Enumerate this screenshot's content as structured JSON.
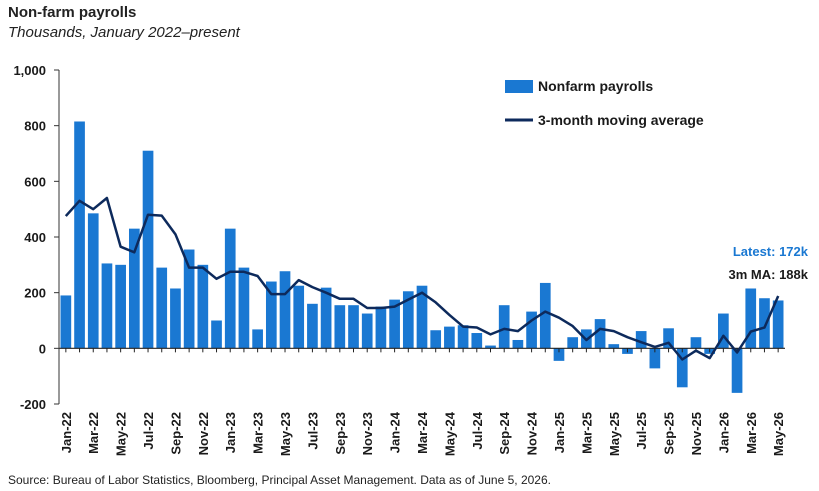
{
  "header": {
    "title": "Non-farm payrolls",
    "subtitle": "Thousands, January 2022–present"
  },
  "footer": {
    "source": "Source: Bureau of Labor Statistics, Bloomberg, Principal Asset Management. Data as of June 5, 2026."
  },
  "annotations": {
    "latest": "Latest: 172k",
    "ma": "3m MA: 188k"
  },
  "colors": {
    "bar": "#1a78d2",
    "line": "#0d2a5c",
    "latest": "#1a78d2",
    "ma": "#1a1a1a"
  },
  "chart_data": {
    "type": "bar",
    "title": "Non-farm payrolls",
    "subtitle": "Thousands, January 2022–present",
    "xlabel": "",
    "ylabel": "",
    "ylim": [
      -200,
      1000
    ],
    "yticks": [
      -200,
      0,
      200,
      400,
      600,
      800,
      1000
    ],
    "ytick_labels": [
      "-200",
      "0",
      "200",
      "400",
      "600",
      "800",
      "1,000"
    ],
    "grid": false,
    "legend": "top-right",
    "categories": [
      "Jan-22",
      "Feb-22",
      "Mar-22",
      "Apr-22",
      "May-22",
      "Jun-22",
      "Jul-22",
      "Aug-22",
      "Sep-22",
      "Oct-22",
      "Nov-22",
      "Dec-22",
      "Jan-23",
      "Feb-23",
      "Mar-23",
      "Apr-23",
      "May-23",
      "Jun-23",
      "Jul-23",
      "Aug-23",
      "Sep-23",
      "Oct-23",
      "Nov-23",
      "Dec-23",
      "Jan-24",
      "Feb-24",
      "Mar-24",
      "Apr-24",
      "May-24",
      "Jun-24",
      "Jul-24",
      "Aug-24",
      "Sep-24",
      "Oct-24",
      "Nov-24",
      "Dec-24",
      "Jan-25",
      "Feb-25",
      "Mar-25",
      "Apr-25",
      "May-25",
      "Jun-25",
      "Jul-25",
      "Aug-25",
      "Sep-25",
      "Oct-25",
      "Nov-25",
      "Dec-25",
      "Jan-26",
      "Feb-26",
      "Mar-26",
      "Apr-26",
      "May-26"
    ],
    "xtick_labels": [
      "Jan-22",
      "Mar-22",
      "May-22",
      "Jul-22",
      "Sep-22",
      "Nov-22",
      "Jan-23",
      "Mar-23",
      "May-23",
      "Jul-23",
      "Sep-23",
      "Nov-23",
      "Jan-24",
      "Mar-24",
      "May-24",
      "Jul-24",
      "Sep-24",
      "Nov-24",
      "Jan-25",
      "Mar-25",
      "May-25",
      "Jul-25",
      "Sep-25",
      "Nov-25",
      "Jan-26",
      "Mar-26",
      "May-26"
    ],
    "series": [
      {
        "name": "Nonfarm payrolls",
        "type": "bar",
        "values": [
          190,
          815,
          485,
          305,
          300,
          430,
          710,
          290,
          215,
          355,
          300,
          100,
          430,
          290,
          68,
          240,
          277,
          225,
          160,
          218,
          155,
          155,
          125,
          150,
          175,
          205,
          225,
          65,
          78,
          83,
          55,
          10,
          155,
          30,
          132,
          235,
          -45,
          40,
          68,
          105,
          15,
          -20,
          62,
          -72,
          72,
          -140,
          40,
          -20,
          125,
          -160,
          215,
          180,
          172
        ]
      },
      {
        "name": "3-month moving average",
        "type": "line",
        "values": [
          475,
          530,
          500,
          540,
          365,
          345,
          480,
          477,
          410,
          290,
          290,
          250,
          275,
          275,
          260,
          195,
          195,
          245,
          220,
          200,
          178,
          178,
          145,
          145,
          150,
          175,
          200,
          165,
          120,
          78,
          75,
          50,
          70,
          62,
          100,
          132,
          110,
          80,
          30,
          70,
          62,
          40,
          22,
          5,
          20,
          -40,
          -8,
          -35,
          45,
          -15,
          60,
          75,
          188
        ]
      }
    ]
  }
}
